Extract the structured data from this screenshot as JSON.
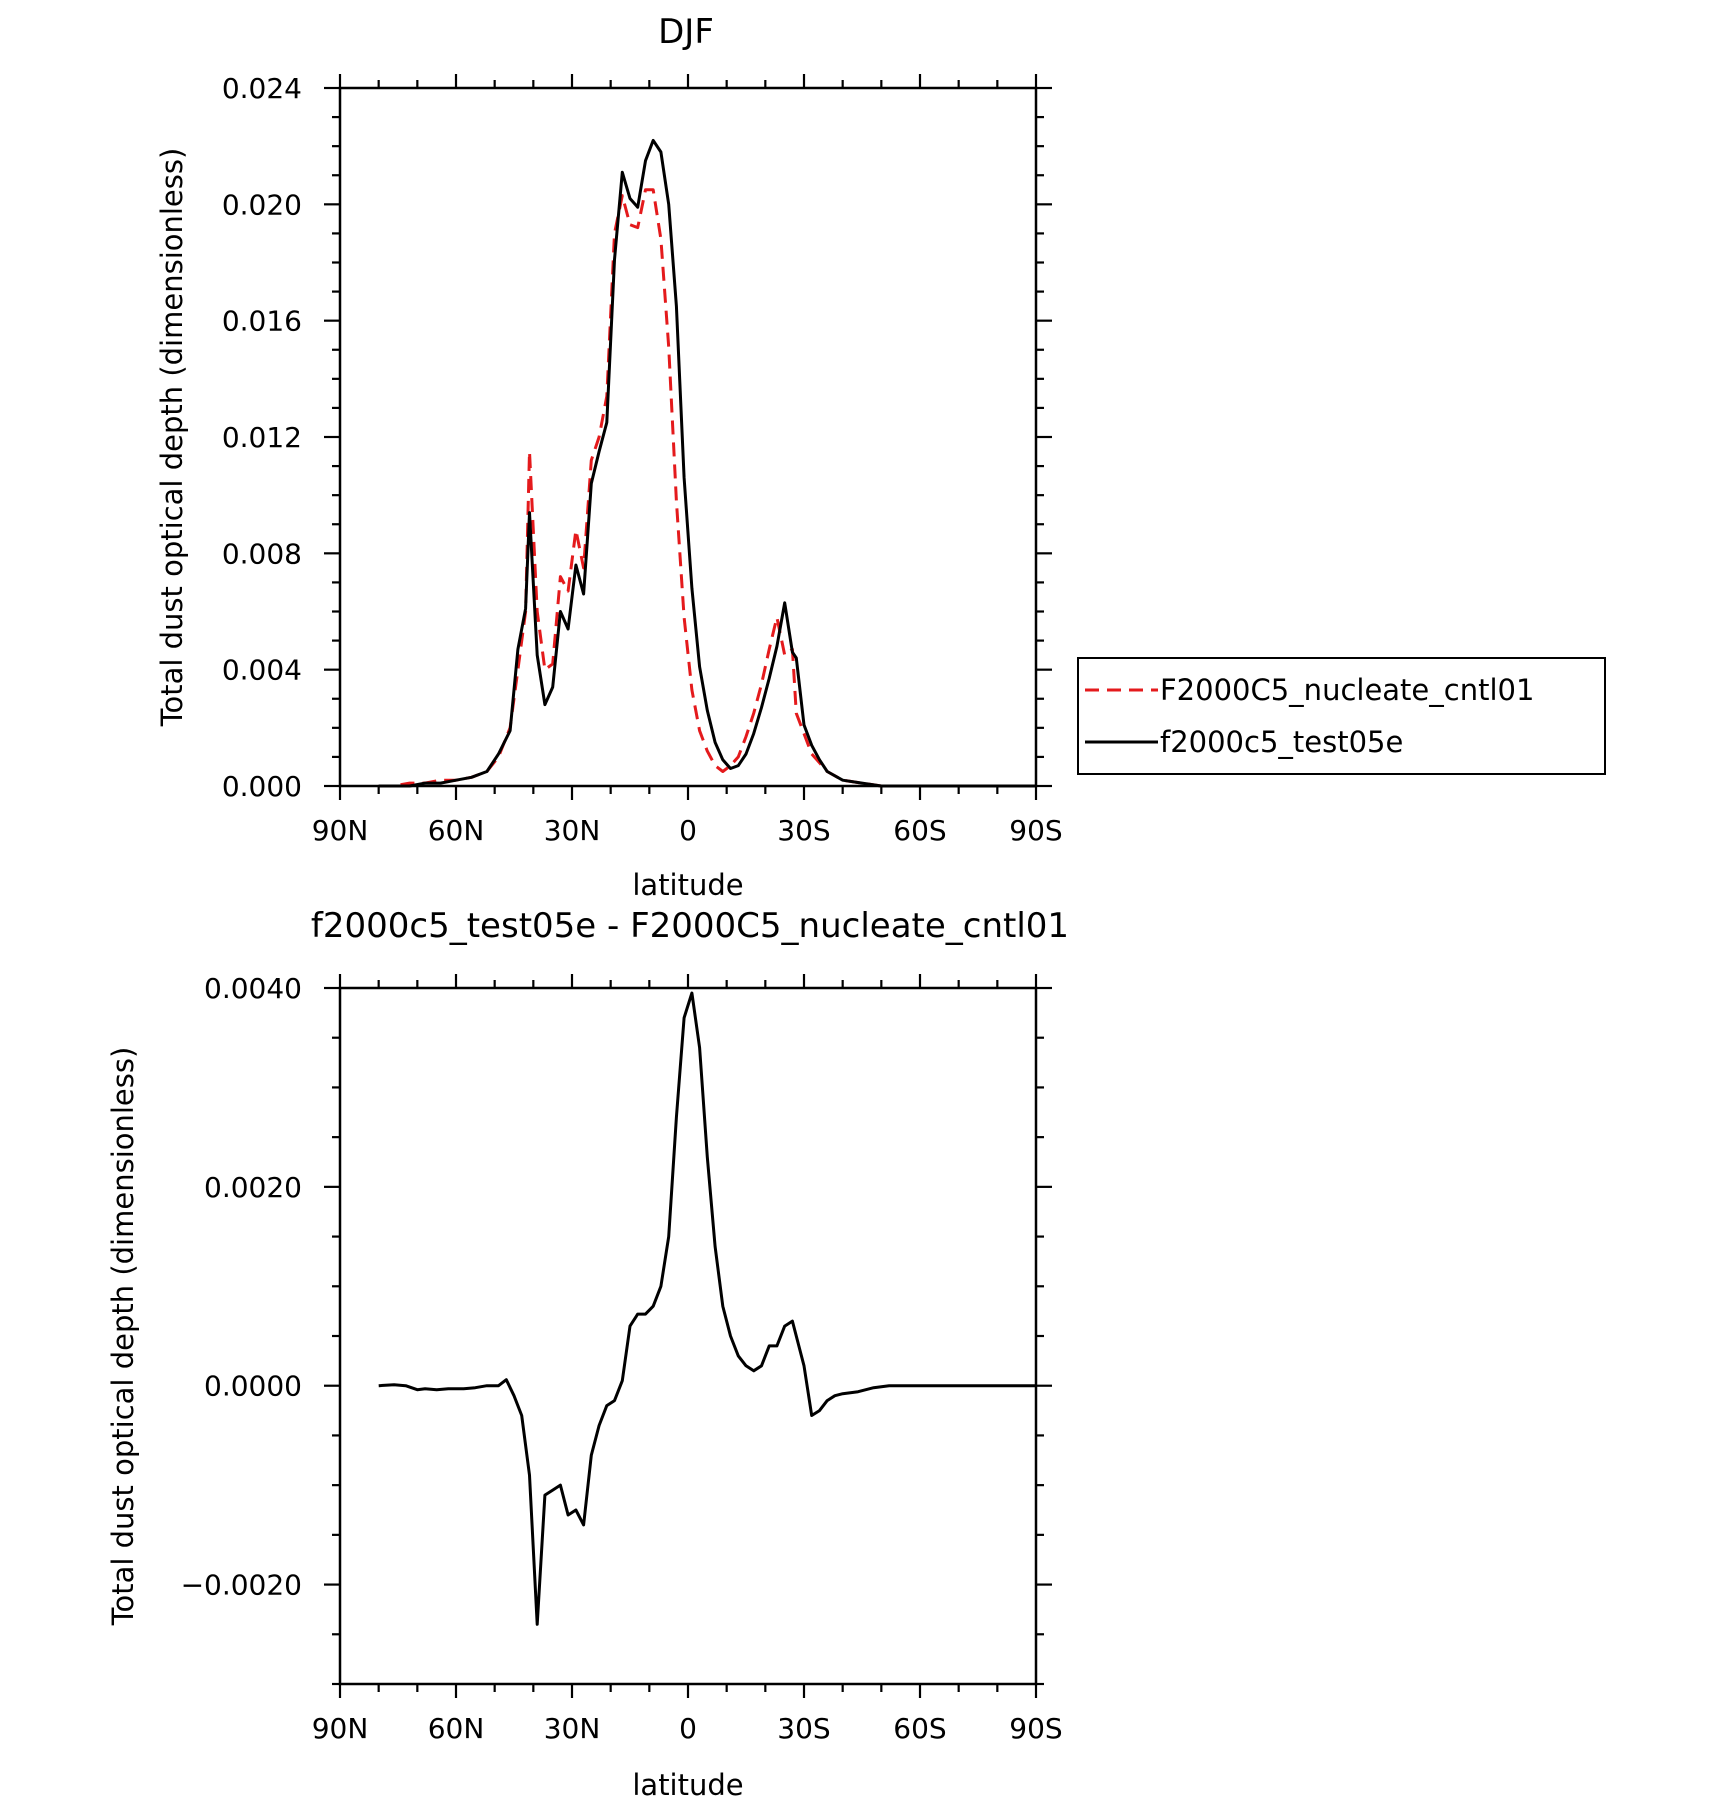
{
  "chart_data": [
    {
      "type": "line",
      "title": "DJF",
      "xlabel": "latitude",
      "ylabel": "Total dust optical depth (dimensionless)",
      "xlim": [
        90,
        -90
      ],
      "ylim": [
        0.0,
        0.024
      ],
      "xticks": [
        {
          "value": 90,
          "label": "90N"
        },
        {
          "value": 60,
          "label": "60N"
        },
        {
          "value": 30,
          "label": "30N"
        },
        {
          "value": 0,
          "label": "0"
        },
        {
          "value": -30,
          "label": "30S"
        },
        {
          "value": -60,
          "label": "60S"
        },
        {
          "value": -90,
          "label": "90S"
        }
      ],
      "yticks": [
        {
          "value": 0.0,
          "label": "0.000"
        },
        {
          "value": 0.004,
          "label": "0.004"
        },
        {
          "value": 0.008,
          "label": "0.008"
        },
        {
          "value": 0.012,
          "label": "0.012"
        },
        {
          "value": 0.016,
          "label": "0.016"
        },
        {
          "value": 0.02,
          "label": "0.020"
        },
        {
          "value": 0.024,
          "label": "0.024"
        }
      ],
      "legend_position": "right",
      "series": [
        {
          "name": "F2000C5_nucleate_cntl01",
          "color": "#e41a1c",
          "dash": "dashed",
          "x": [
            80,
            76,
            72,
            68,
            64,
            60,
            56,
            52,
            49,
            46,
            44,
            42,
            41,
            39,
            37,
            35,
            33,
            31,
            29,
            27,
            25,
            23,
            21,
            19,
            17,
            15,
            13,
            11,
            9,
            7,
            5,
            3,
            1,
            -1,
            -3,
            -5,
            -7,
            -9,
            -11,
            -13,
            -15,
            -17,
            -19,
            -21,
            -23,
            -25,
            -27,
            -28,
            -30,
            -32,
            -34,
            -36,
            -40,
            -45,
            -50,
            -55,
            -60,
            -70,
            -80,
            -90
          ],
          "y": [
            0.0,
            0.0,
            0.0001,
            0.0001,
            0.0002,
            0.0002,
            0.0003,
            0.0005,
            0.001,
            0.002,
            0.004,
            0.006,
            0.0115,
            0.006,
            0.004,
            0.0042,
            0.0072,
            0.0067,
            0.0088,
            0.0075,
            0.0112,
            0.012,
            0.0134,
            0.019,
            0.0203,
            0.0193,
            0.0192,
            0.0205,
            0.0205,
            0.0188,
            0.0151,
            0.0098,
            0.0058,
            0.0033,
            0.0019,
            0.0012,
            0.0007,
            0.0005,
            0.0007,
            0.001,
            0.0017,
            0.0025,
            0.0035,
            0.0047,
            0.0058,
            0.0045,
            0.0047,
            0.0025,
            0.0018,
            0.0011,
            0.0008,
            0.0005,
            0.0002,
            0.0001,
            0.0,
            0.0,
            0.0,
            0.0,
            0.0,
            0.0
          ]
        },
        {
          "name": "f2000c5_test05e",
          "color": "#000000",
          "dash": "solid",
          "x": [
            80,
            76,
            72,
            68,
            64,
            60,
            56,
            52,
            49,
            46,
            44,
            42,
            41,
            39,
            37,
            35,
            33,
            31,
            29,
            27,
            25,
            23,
            21,
            19,
            17,
            15,
            13,
            11,
            9,
            7,
            5,
            3,
            1,
            -1,
            -3,
            -5,
            -7,
            -9,
            -11,
            -13,
            -15,
            -17,
            -19,
            -21,
            -23,
            -25,
            -27,
            -28,
            -30,
            -32,
            -34,
            -36,
            -40,
            -45,
            -50,
            -55,
            -60,
            -70,
            -80,
            -90
          ],
          "y": [
            0.0,
            0.0,
            0.0,
            0.0001,
            0.0001,
            0.0002,
            0.0003,
            0.0005,
            0.0011,
            0.0019,
            0.0047,
            0.0061,
            0.0094,
            0.0045,
            0.0028,
            0.0034,
            0.006,
            0.0054,
            0.0076,
            0.0066,
            0.0104,
            0.0115,
            0.0125,
            0.0181,
            0.0211,
            0.0202,
            0.0199,
            0.0215,
            0.0222,
            0.0218,
            0.02,
            0.0165,
            0.0106,
            0.0068,
            0.0041,
            0.0026,
            0.0015,
            0.0009,
            0.0006,
            0.0007,
            0.0011,
            0.0018,
            0.0027,
            0.0037,
            0.0048,
            0.0063,
            0.0046,
            0.0044,
            0.0021,
            0.0014,
            0.0009,
            0.0005,
            0.0002,
            0.0001,
            0.0,
            0.0,
            0.0,
            0.0,
            0.0,
            0.0
          ]
        }
      ]
    },
    {
      "type": "line",
      "title": "f2000c5_test05e - F2000C5_nucleate_cntl01",
      "xlabel": "latitude",
      "ylabel": "Total dust optical depth (dimensionless)",
      "xlim": [
        90,
        -90
      ],
      "ylim": [
        -0.003,
        0.004
      ],
      "xticks": [
        {
          "value": 90,
          "label": "90N"
        },
        {
          "value": 60,
          "label": "60N"
        },
        {
          "value": 30,
          "label": "30N"
        },
        {
          "value": 0,
          "label": "0"
        },
        {
          "value": -30,
          "label": "30S"
        },
        {
          "value": -60,
          "label": "60S"
        },
        {
          "value": -90,
          "label": "90S"
        }
      ],
      "yticks": [
        {
          "value": -0.002,
          "label": "−0.0020"
        },
        {
          "value": 0.0,
          "label": "0.0000"
        },
        {
          "value": 0.002,
          "label": "0.0020"
        },
        {
          "value": 0.004,
          "label": "0.0040"
        }
      ],
      "series": [
        {
          "color": "#000000",
          "dash": "solid",
          "x": [
            80,
            76,
            73,
            70,
            68,
            65,
            62,
            58,
            55,
            52,
            49,
            47,
            45,
            43,
            41,
            39,
            37,
            35,
            33,
            31,
            29,
            27,
            25,
            23,
            21,
            19,
            17,
            15,
            13,
            11,
            9,
            7,
            5,
            3,
            1,
            -1,
            -3,
            -5,
            -7,
            -9,
            -11,
            -13,
            -15,
            -17,
            -19,
            -21,
            -23,
            -25,
            -27,
            -30,
            -32,
            -34,
            -36,
            -38,
            -40,
            -44,
            -48,
            -52,
            -56,
            -60,
            -70,
            -80,
            -90
          ],
          "y": [
            0.0,
            1e-05,
            0.0,
            -4e-05,
            -3e-05,
            -4e-05,
            -3e-05,
            -3e-05,
            -2e-05,
            0.0,
            0.0,
            6e-05,
            -0.0001,
            -0.0003,
            -0.0009,
            -0.0024,
            -0.0011,
            -0.00105,
            -0.001,
            -0.0013,
            -0.00125,
            -0.0014,
            -0.0007,
            -0.0004,
            -0.0002,
            -0.00015,
            5e-05,
            0.0006,
            0.00072,
            0.00072,
            0.0008,
            0.001,
            0.0015,
            0.0027,
            0.0037,
            0.00395,
            0.0034,
            0.0023,
            0.0014,
            0.0008,
            0.0005,
            0.0003,
            0.0002,
            0.00015,
            0.0002,
            0.0004,
            0.0004,
            0.0006,
            0.00065,
            0.0002,
            -0.0003,
            -0.00025,
            -0.00015,
            -0.0001,
            -8e-05,
            -6e-05,
            -2e-05,
            0.0,
            0.0,
            0.0,
            0.0,
            0.0,
            0.0
          ]
        }
      ]
    }
  ]
}
